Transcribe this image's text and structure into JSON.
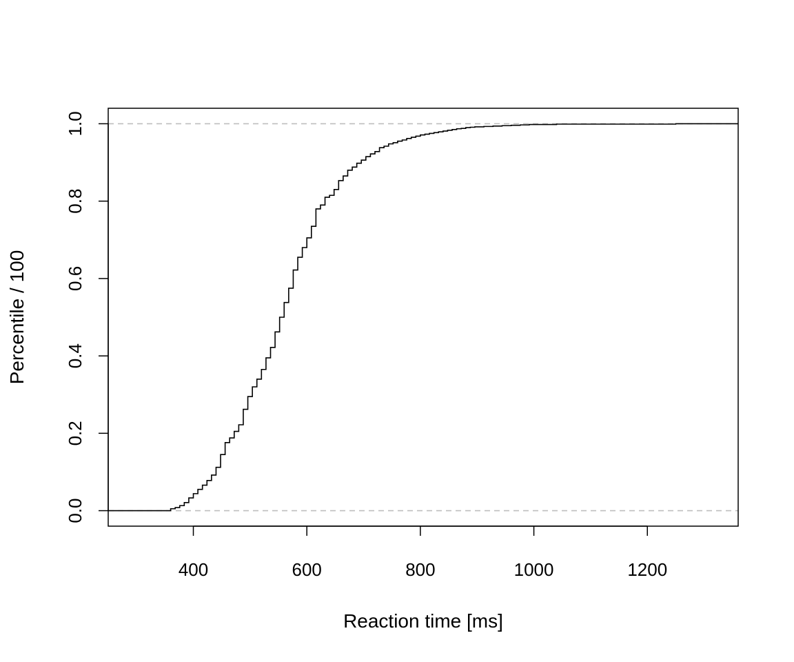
{
  "chart_data": {
    "type": "line",
    "subtype": "ecdf-step",
    "title": "",
    "xlabel": "Reaction time [ms]",
    "ylabel": "Percentile / 100",
    "xlim": [
      250,
      1360
    ],
    "ylim": [
      -0.04,
      1.04
    ],
    "x_ticks": [
      400,
      600,
      800,
      1000,
      1200
    ],
    "y_ticks": [
      0.0,
      0.2,
      0.4,
      0.6,
      0.8,
      1.0
    ],
    "x_tick_labels": [
      "400",
      "600",
      "800",
      "1000",
      "1200"
    ],
    "y_tick_labels": [
      "0.0",
      "0.2",
      "0.4",
      "0.6",
      "0.8",
      "1.0"
    ],
    "reference_lines": [
      0.0,
      1.0
    ],
    "grid": false,
    "legend": "none",
    "colors": {
      "line": "#000000",
      "reference": "#bebebe",
      "axis": "#000000"
    },
    "series": [
      {
        "x": [
          360,
          368,
          376,
          384,
          392,
          400,
          408,
          416,
          424,
          432,
          440,
          448,
          456,
          464,
          472,
          480,
          488,
          496,
          504,
          512,
          520,
          528,
          536,
          544,
          552,
          560,
          568,
          576,
          584,
          592,
          600,
          608,
          616,
          624,
          632,
          640,
          648,
          656,
          664,
          672,
          680,
          688,
          696,
          704,
          712,
          720,
          728,
          736,
          744,
          752,
          760,
          768,
          776,
          784,
          792,
          800,
          808,
          816,
          824,
          832,
          840,
          848,
          856,
          864,
          872,
          880,
          888,
          896,
          912,
          928,
          944,
          960,
          976,
          992,
          1040,
          1250
        ],
        "y": [
          0.005,
          0.008,
          0.013,
          0.021,
          0.033,
          0.044,
          0.055,
          0.066,
          0.078,
          0.092,
          0.112,
          0.145,
          0.176,
          0.188,
          0.205,
          0.222,
          0.262,
          0.295,
          0.32,
          0.34,
          0.365,
          0.395,
          0.422,
          0.462,
          0.5,
          0.538,
          0.575,
          0.622,
          0.655,
          0.68,
          0.705,
          0.735,
          0.78,
          0.79,
          0.81,
          0.815,
          0.83,
          0.853,
          0.865,
          0.88,
          0.888,
          0.898,
          0.906,
          0.915,
          0.922,
          0.928,
          0.938,
          0.942,
          0.948,
          0.951,
          0.955,
          0.958,
          0.962,
          0.965,
          0.968,
          0.971,
          0.973,
          0.975,
          0.977,
          0.979,
          0.981,
          0.983,
          0.985,
          0.987,
          0.988,
          0.99,
          0.991,
          0.992,
          0.993,
          0.994,
          0.995,
          0.996,
          0.997,
          0.998,
          0.999,
          1.0
        ]
      }
    ]
  }
}
